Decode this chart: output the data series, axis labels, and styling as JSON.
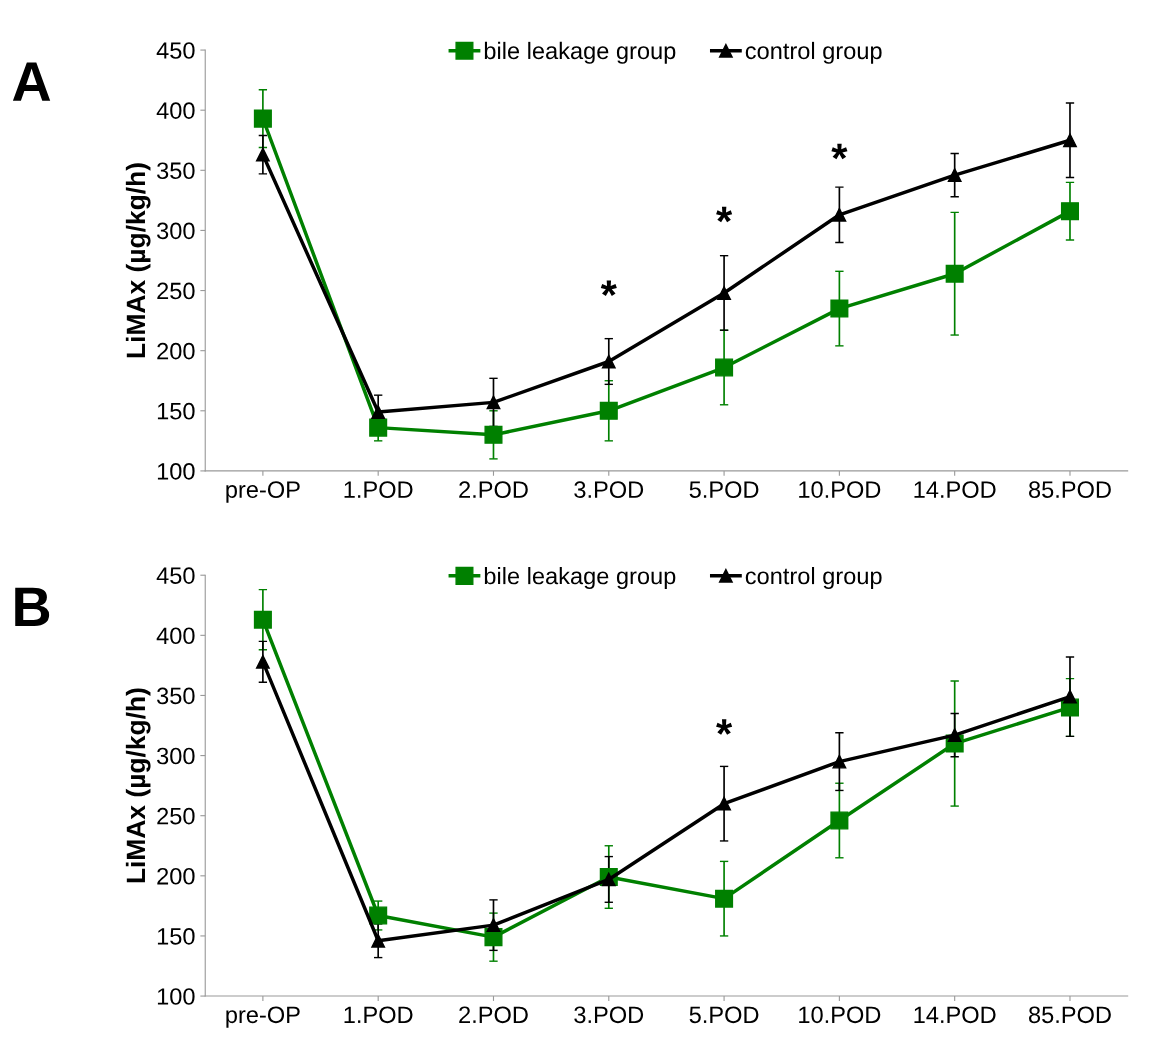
{
  "chart_data": [
    {
      "type": "line",
      "title": "A",
      "ylabel": "LiMAx (µg/kg/h)",
      "categories": [
        "pre-OP",
        "1.POD",
        "2.POD",
        "3.POD",
        "5.POD",
        "10.POD",
        "14.POD",
        "85.POD"
      ],
      "series": [
        {
          "name": "bile leakage group",
          "color": "#008000",
          "marker": "square",
          "values": [
            393,
            136,
            130,
            150,
            186,
            235,
            264,
            316
          ],
          "errors": [
            24,
            11,
            20,
            25,
            31,
            31,
            51,
            24
          ]
        },
        {
          "name": "control group",
          "color": "#000000",
          "marker": "triangle",
          "values": [
            363,
            149,
            157,
            191,
            248,
            313,
            346,
            375
          ],
          "errors": [
            16,
            14,
            20,
            19,
            31,
            23,
            18,
            31
          ]
        }
      ],
      "ylim": [
        100,
        450
      ],
      "yticks": [
        100,
        150,
        200,
        250,
        300,
        350,
        400,
        450
      ],
      "grid": false,
      "legend": "top",
      "line_style": "solid",
      "annotations": [
        "*",
        "*",
        "*"
      ]
    },
    {
      "type": "line",
      "title": "B",
      "ylabel": "LiMAx (µg/kg/h)",
      "categories": [
        "pre-OP",
        "1.POD",
        "2.POD",
        "3.POD",
        "5.POD",
        "10.POD",
        "14.POD",
        "85.POD"
      ],
      "series": [
        {
          "name": "bile leakage group",
          "color": "#008000",
          "marker": "square",
          "values": [
            413,
            167,
            149,
            199,
            181,
            246,
            310,
            340
          ],
          "errors": [
            25,
            12,
            20,
            26,
            31,
            31,
            52,
            24
          ]
        },
        {
          "name": "control group",
          "color": "#000000",
          "marker": "triangle",
          "values": [
            378,
            146,
            159,
            197,
            260,
            295,
            317,
            349
          ],
          "errors": [
            17,
            14,
            21,
            19,
            31,
            24,
            18,
            33
          ]
        }
      ],
      "ylim": [
        100,
        450
      ],
      "yticks": [
        100,
        150,
        200,
        250,
        300,
        350,
        400,
        450
      ],
      "grid": false,
      "legend": "top",
      "line_style": "solid",
      "annotations": [
        "*"
      ]
    }
  ]
}
